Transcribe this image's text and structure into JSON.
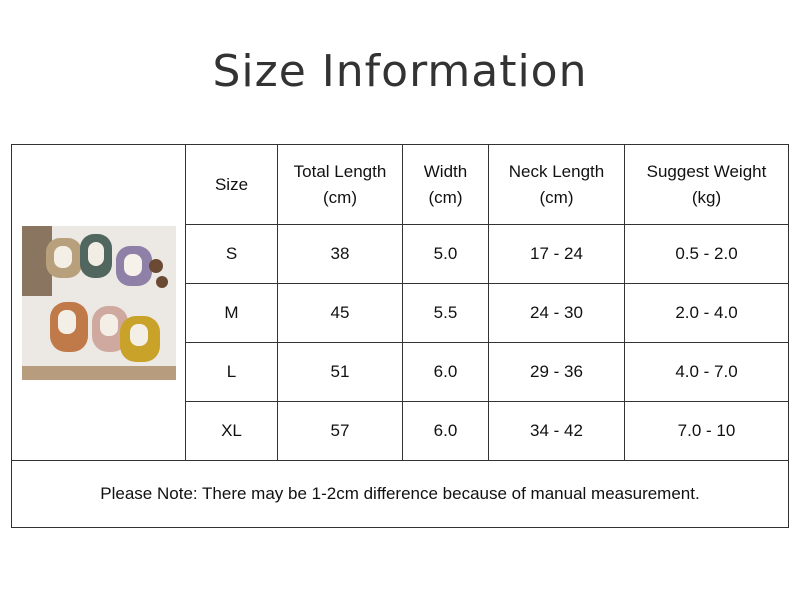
{
  "title": "Size Information",
  "table": {
    "headers": [
      [
        "Size"
      ],
      [
        "Total Length",
        "(cm)"
      ],
      [
        "Width",
        "(cm)"
      ],
      [
        "Neck Length",
        "(cm)"
      ],
      [
        "Suggest Weight",
        "(kg)"
      ]
    ],
    "rows": [
      [
        "S",
        "38",
        "5.0",
        "17 - 24",
        "0.5 - 2.0"
      ],
      [
        "M",
        "45",
        "5.5",
        "24 - 30",
        "2.0 - 4.0"
      ],
      [
        "L",
        "51",
        "6.0",
        "29 - 36",
        "4.0 - 7.0"
      ],
      [
        "XL",
        "57",
        "6.0",
        "34 - 42",
        "7.0 - 10"
      ]
    ],
    "note": "Please Note: There may be 1-2cm difference because of manual measurement."
  }
}
